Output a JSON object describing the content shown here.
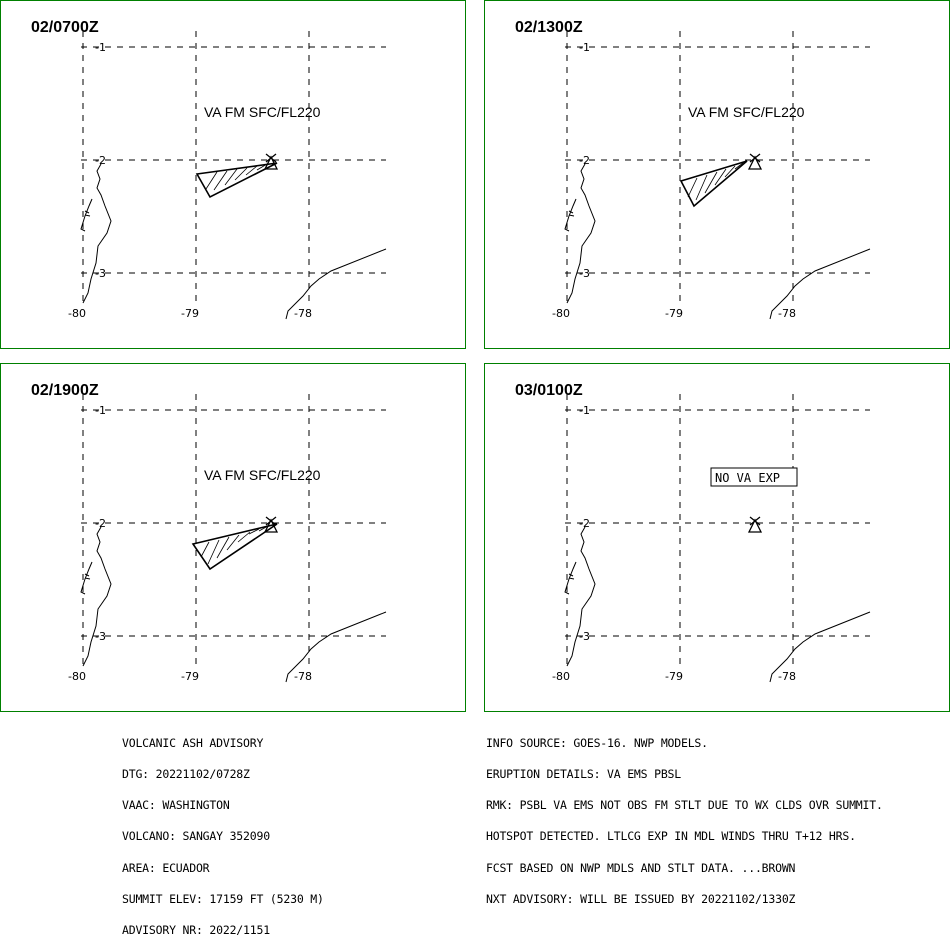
{
  "panels": [
    {
      "time": "02/0700Z",
      "va_label": "VA FM SFC/FL220",
      "has_ash": true
    },
    {
      "time": "02/1300Z",
      "va_label": "VA FM SFC/FL220",
      "has_ash": true
    },
    {
      "time": "02/1900Z",
      "va_label": "VA FM SFC/FL220",
      "has_ash": true
    },
    {
      "time": "03/0100Z",
      "va_label": "NO VA EXP",
      "has_ash": false
    }
  ],
  "grid": {
    "lat_labels": [
      "-1",
      "-2",
      "-3"
    ],
    "lon_labels": [
      "-80",
      "-79",
      "-78"
    ]
  },
  "left_info": [
    "VOLCANIC ASH ADVISORY",
    "DTG: 20221102/0728Z",
    "VAAC: WASHINGTON",
    "VOLCANO: SANGAY 352090",
    "AREA: ECUADOR",
    "SUMMIT ELEV: 17159 FT (5230 M)",
    "ADVISORY NR: 2022/1151"
  ],
  "right_info": [
    "INFO SOURCE: GOES-16. NWP MODELS.",
    "ERUPTION DETAILS: VA EMS PBSL",
    "RMK: PSBL VA EMS NOT OBS FM STLT DUE TO WX CLDS OVR SUMMIT.",
    "HOTSPOT DETECTED. LTLCG EXP IN MDL WINDS THRU T+12 HRS.",
    "FCST BASED ON NWP MDLS AND STLT DATA. ...BROWN",
    "NXT ADVISORY: WILL BE ISSUED BY 20221102/1330Z"
  ],
  "colors": {
    "border": "#008000",
    "ink": "#000000"
  }
}
